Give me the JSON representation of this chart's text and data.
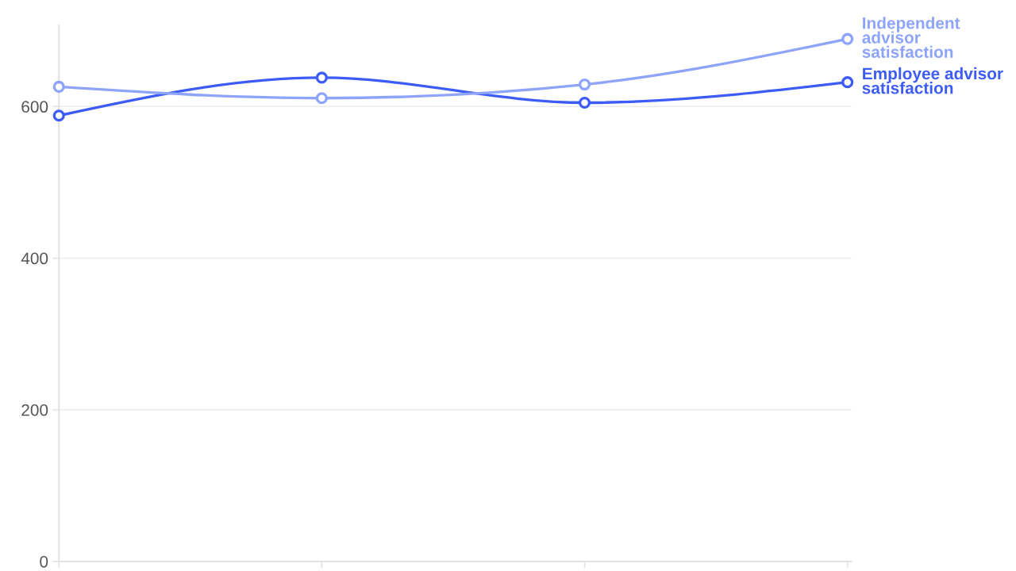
{
  "chart_data": {
    "type": "line",
    "categories": [
      null,
      null,
      null,
      null
    ],
    "series": [
      {
        "name": "Employee advisor satisfaction",
        "color": "#3d5cf5",
        "values": [
          588,
          638,
          605,
          632
        ]
      },
      {
        "name": "Independent advisor satisfaction",
        "color": "#8ea4fb",
        "values": [
          626,
          611,
          629,
          689
        ]
      }
    ],
    "ylim": [
      0,
      707
    ],
    "yticks": [
      0,
      200,
      400,
      600
    ],
    "grid": "y",
    "marker": "circle",
    "line_style": "solid"
  }
}
